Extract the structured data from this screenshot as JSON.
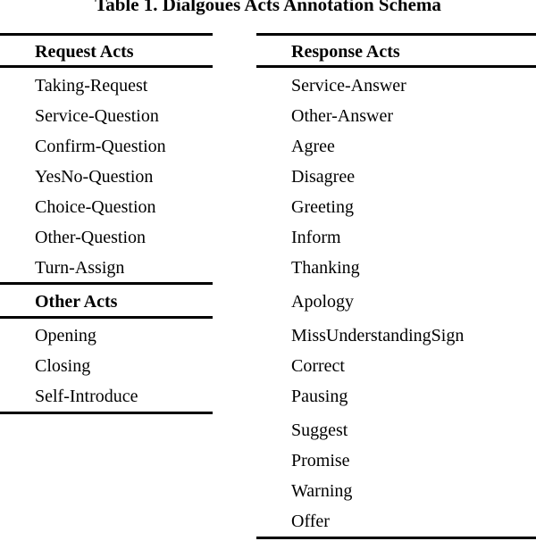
{
  "title": "Table 1. Dialgoues Acts Annotation Schema",
  "request_acts": {
    "header": "Request Acts",
    "items": [
      "Taking-Request",
      "Service-Question",
      "Confirm-Question",
      "YesNo-Question",
      "Choice-Question",
      "Other-Question",
      "Turn-Assign"
    ]
  },
  "other_acts": {
    "header": "Other Acts",
    "items": [
      "Opening",
      "Closing",
      "Self-Introduce"
    ]
  },
  "response_acts": {
    "header": "Response Acts",
    "items": [
      "Service-Answer",
      "Other-Answer",
      "Agree",
      "Disagree",
      "Greeting",
      "Inform",
      "Thanking",
      "Apology",
      "MissUnderstandingSign",
      "Correct",
      "Pausing",
      "Suggest",
      "Promise",
      "Warning",
      "Offer"
    ]
  }
}
